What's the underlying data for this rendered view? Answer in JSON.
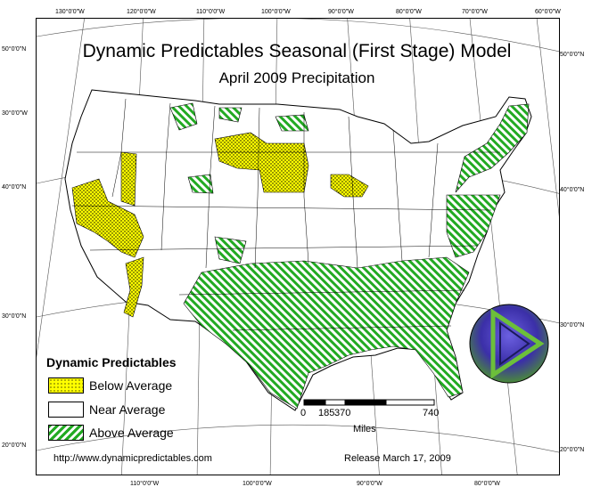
{
  "title": "Dynamic Predictables Seasonal (First Stage) Model",
  "subtitle": "April 2009 Precipitation",
  "legend": {
    "title": "Dynamic Predictables",
    "items": [
      {
        "label": "Below Average",
        "category": "below"
      },
      {
        "label": "Near Average",
        "category": "near"
      },
      {
        "label": "Above Average",
        "category": "above"
      }
    ]
  },
  "scale_bar": {
    "ticks": [
      "0",
      "185",
      "370",
      "740"
    ],
    "unit": "Miles"
  },
  "footer": {
    "url": "http://www.dynamicpredictables.com",
    "release": "Release March 17, 2009"
  },
  "graticule_labels": {
    "top": [
      "130°0'0\"W",
      "120°0'0\"W",
      "110°0'0\"W",
      "100°0'0\"W",
      "90°0'0\"W",
      "80°0'0\"W",
      "70°0'0\"W",
      "60°0'0\"W"
    ],
    "bottom": [
      "110°0'0\"W",
      "100°0'0\"W",
      "90°0'0\"W",
      "80°0'0\"W"
    ],
    "left": [
      "50°0'0\"N",
      "30°0'0\"W",
      "40°0'0\"N",
      "30°0'0\"N",
      "20°0'0\"N"
    ],
    "right": [
      "50°0'0\"N",
      "40°0'0\"N",
      "30°0'0\"N",
      "20°0'0\"N"
    ]
  },
  "colors": {
    "below_fill": "#ffff00",
    "below_dots": "#000000",
    "above_fill": "#ffffff",
    "above_stripe": "#22aa22",
    "near_fill": "#ffffff",
    "logo_circle": "#3b2fa8",
    "logo_green": "#6cbf3a"
  },
  "logo": {
    "icon": "play-triangle-logo"
  }
}
